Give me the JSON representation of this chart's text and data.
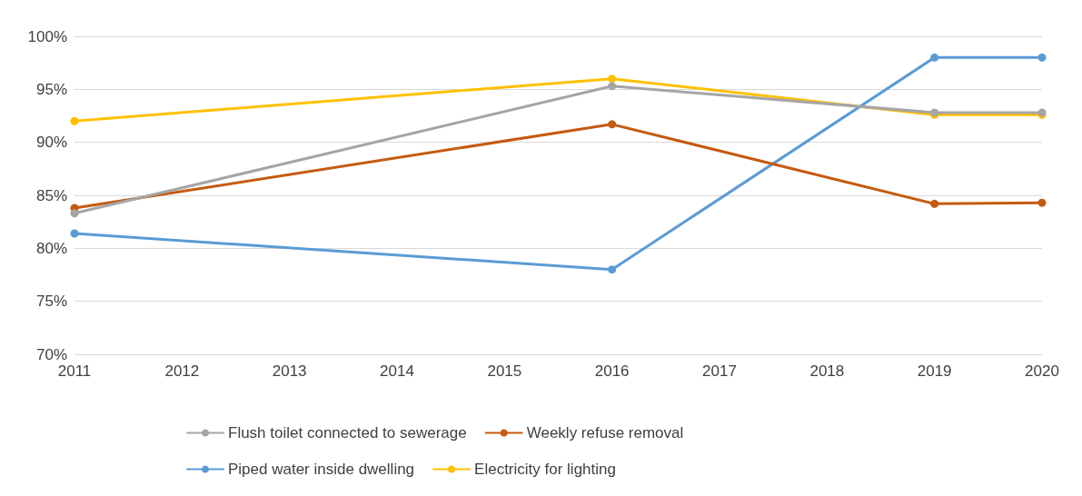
{
  "chart_data": {
    "type": "line",
    "x": [
      2011,
      2016,
      2019,
      2020
    ],
    "series": [
      {
        "name": "Flush toilet connected to sewerage",
        "color": "#a5a5a5",
        "values": [
          83.3,
          95.3,
          92.8,
          92.8
        ]
      },
      {
        "name": "Weekly refuse removal",
        "color": "#c55a11",
        "values": [
          83.8,
          91.7,
          84.2,
          84.3
        ]
      },
      {
        "name": "Piped water inside dwelling",
        "color": "#5b9bd5",
        "values": [
          81.4,
          78.0,
          98.0,
          98.0
        ]
      },
      {
        "name": "Electricity for lighting",
        "color": "#ffc000",
        "values": [
          92.0,
          96.0,
          92.6,
          92.6
        ]
      }
    ],
    "xlim": [
      2011,
      2020
    ],
    "xticks": [
      2011,
      2012,
      2013,
      2014,
      2015,
      2016,
      2017,
      2018,
      2019,
      2020
    ],
    "ylim": [
      70,
      100
    ],
    "yticks": [
      {
        "value": 70,
        "label": "70%"
      },
      {
        "value": 75,
        "label": "75%"
      },
      {
        "value": 80,
        "label": "80%"
      },
      {
        "value": 85,
        "label": "85%"
      },
      {
        "value": 90,
        "label": "90%"
      },
      {
        "value": 95,
        "label": "95%"
      },
      {
        "value": 100,
        "label": "100%"
      }
    ],
    "grid": "y",
    "legend": "bottom",
    "marker": "circle",
    "line_style": "solid"
  }
}
